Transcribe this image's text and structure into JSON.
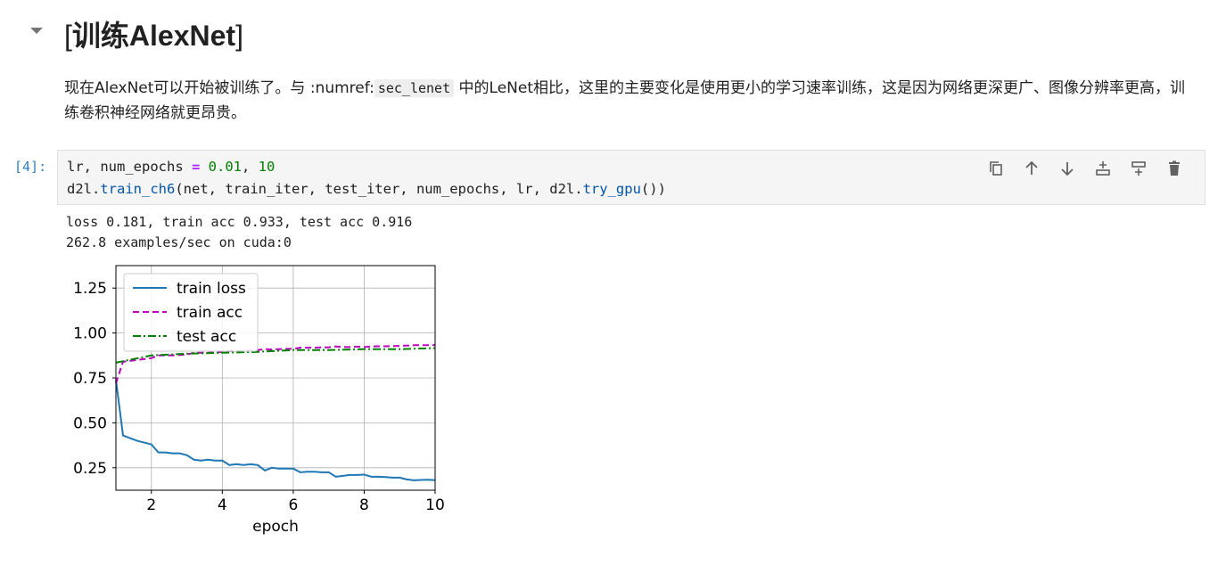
{
  "heading": {
    "open_bracket": "[",
    "title": "训练AlexNet",
    "close_bracket": "]"
  },
  "paragraph": {
    "part1": "现在AlexNet可以开始被训练了。与 :numref:",
    "code": "sec_lenet",
    "part2": " 中的LeNet相比，这里的主要变化是使用更小的学习速率训练，这是因为网络更深更广、图像分辨率更高，训练卷积神经网络就更昂贵。"
  },
  "cell": {
    "prompt": "[4]:",
    "code": {
      "l1_a": "lr, num_epochs ",
      "l1_op": "=",
      "l1_sp": " ",
      "l1_n1": "0.01",
      "l1_c": ", ",
      "l1_n2": "10",
      "l2_a": "d2l.",
      "l2_fn": "train_ch6",
      "l2_b": "(net, train_iter, test_iter, num_epochs, lr, d2l.",
      "l2_fn2": "try_gpu",
      "l2_c": "())"
    },
    "toolbar": [
      "copy-icon",
      "move-up-icon",
      "move-down-icon",
      "insert-above-icon",
      "insert-below-icon",
      "delete-icon"
    ]
  },
  "output": {
    "line1": "loss 0.181, train acc 0.933, test acc 0.916",
    "line2": "262.8 examples/sec on cuda:0"
  },
  "chart_data": {
    "type": "line",
    "xlabel": "epoch",
    "ylabel": "",
    "xlim": [
      1,
      10
    ],
    "ylim": [
      0.125,
      1.375
    ],
    "xticks": [
      2,
      4,
      6,
      8,
      10
    ],
    "yticks": [
      0.25,
      0.5,
      0.75,
      1.0,
      1.25
    ],
    "ytick_labels": [
      "0.25",
      "0.50",
      "0.75",
      "1.00",
      "1.25"
    ],
    "grid": true,
    "legend_position": "upper left",
    "series": [
      {
        "name": "train loss",
        "style": "solid",
        "color": "#1f77b4",
        "x": [
          1.0,
          1.2,
          1.4,
          1.6,
          1.8,
          2.0,
          2.2,
          2.4,
          2.6,
          2.8,
          3.0,
          3.2,
          3.4,
          3.6,
          3.8,
          4.0,
          4.2,
          4.4,
          4.6,
          4.8,
          5.0,
          5.2,
          5.4,
          5.6,
          5.8,
          6.0,
          6.2,
          6.4,
          6.6,
          6.8,
          7.0,
          7.2,
          7.4,
          7.6,
          7.8,
          8.0,
          8.2,
          8.4,
          8.6,
          8.8,
          9.0,
          9.2,
          9.4,
          9.6,
          9.8,
          10.0
        ],
        "y": [
          0.74,
          0.43,
          0.415,
          0.4,
          0.39,
          0.38,
          0.335,
          0.335,
          0.33,
          0.33,
          0.32,
          0.295,
          0.29,
          0.295,
          0.29,
          0.29,
          0.265,
          0.27,
          0.265,
          0.27,
          0.265,
          0.235,
          0.25,
          0.245,
          0.245,
          0.245,
          0.225,
          0.228,
          0.228,
          0.225,
          0.225,
          0.2,
          0.205,
          0.21,
          0.21,
          0.212,
          0.2,
          0.2,
          0.198,
          0.195,
          0.195,
          0.185,
          0.18,
          0.182,
          0.183,
          0.181
        ]
      },
      {
        "name": "train acc",
        "style": "dashed",
        "color": "#bf00bf",
        "x": [
          1.0,
          1.2,
          1.4,
          1.6,
          1.8,
          2.0,
          2.2,
          2.4,
          2.6,
          2.8,
          3.0,
          3.2,
          3.4,
          3.6,
          3.8,
          4.0,
          4.2,
          4.4,
          4.6,
          4.8,
          5.0,
          5.2,
          5.4,
          5.6,
          5.8,
          6.0,
          6.2,
          6.4,
          6.6,
          6.8,
          7.0,
          7.2,
          7.4,
          7.6,
          7.8,
          8.0,
          8.2,
          8.4,
          8.6,
          8.8,
          9.0,
          9.2,
          9.4,
          9.6,
          9.8,
          10.0
        ],
        "y": [
          0.72,
          0.84,
          0.845,
          0.85,
          0.855,
          0.86,
          0.875,
          0.875,
          0.875,
          0.878,
          0.88,
          0.89,
          0.89,
          0.89,
          0.892,
          0.895,
          0.9,
          0.9,
          0.9,
          0.902,
          0.905,
          0.91,
          0.908,
          0.91,
          0.912,
          0.912,
          0.918,
          0.918,
          0.918,
          0.92,
          0.92,
          0.925,
          0.922,
          0.922,
          0.924,
          0.922,
          0.925,
          0.926,
          0.926,
          0.927,
          0.928,
          0.93,
          0.932,
          0.932,
          0.932,
          0.933
        ]
      },
      {
        "name": "test acc",
        "style": "dashdot",
        "color": "#008000",
        "x": [
          1,
          2,
          3,
          4,
          5,
          6,
          7,
          8,
          9,
          10
        ],
        "y": [
          0.835,
          0.875,
          0.885,
          0.89,
          0.895,
          0.905,
          0.905,
          0.91,
          0.91,
          0.916
        ]
      }
    ]
  }
}
